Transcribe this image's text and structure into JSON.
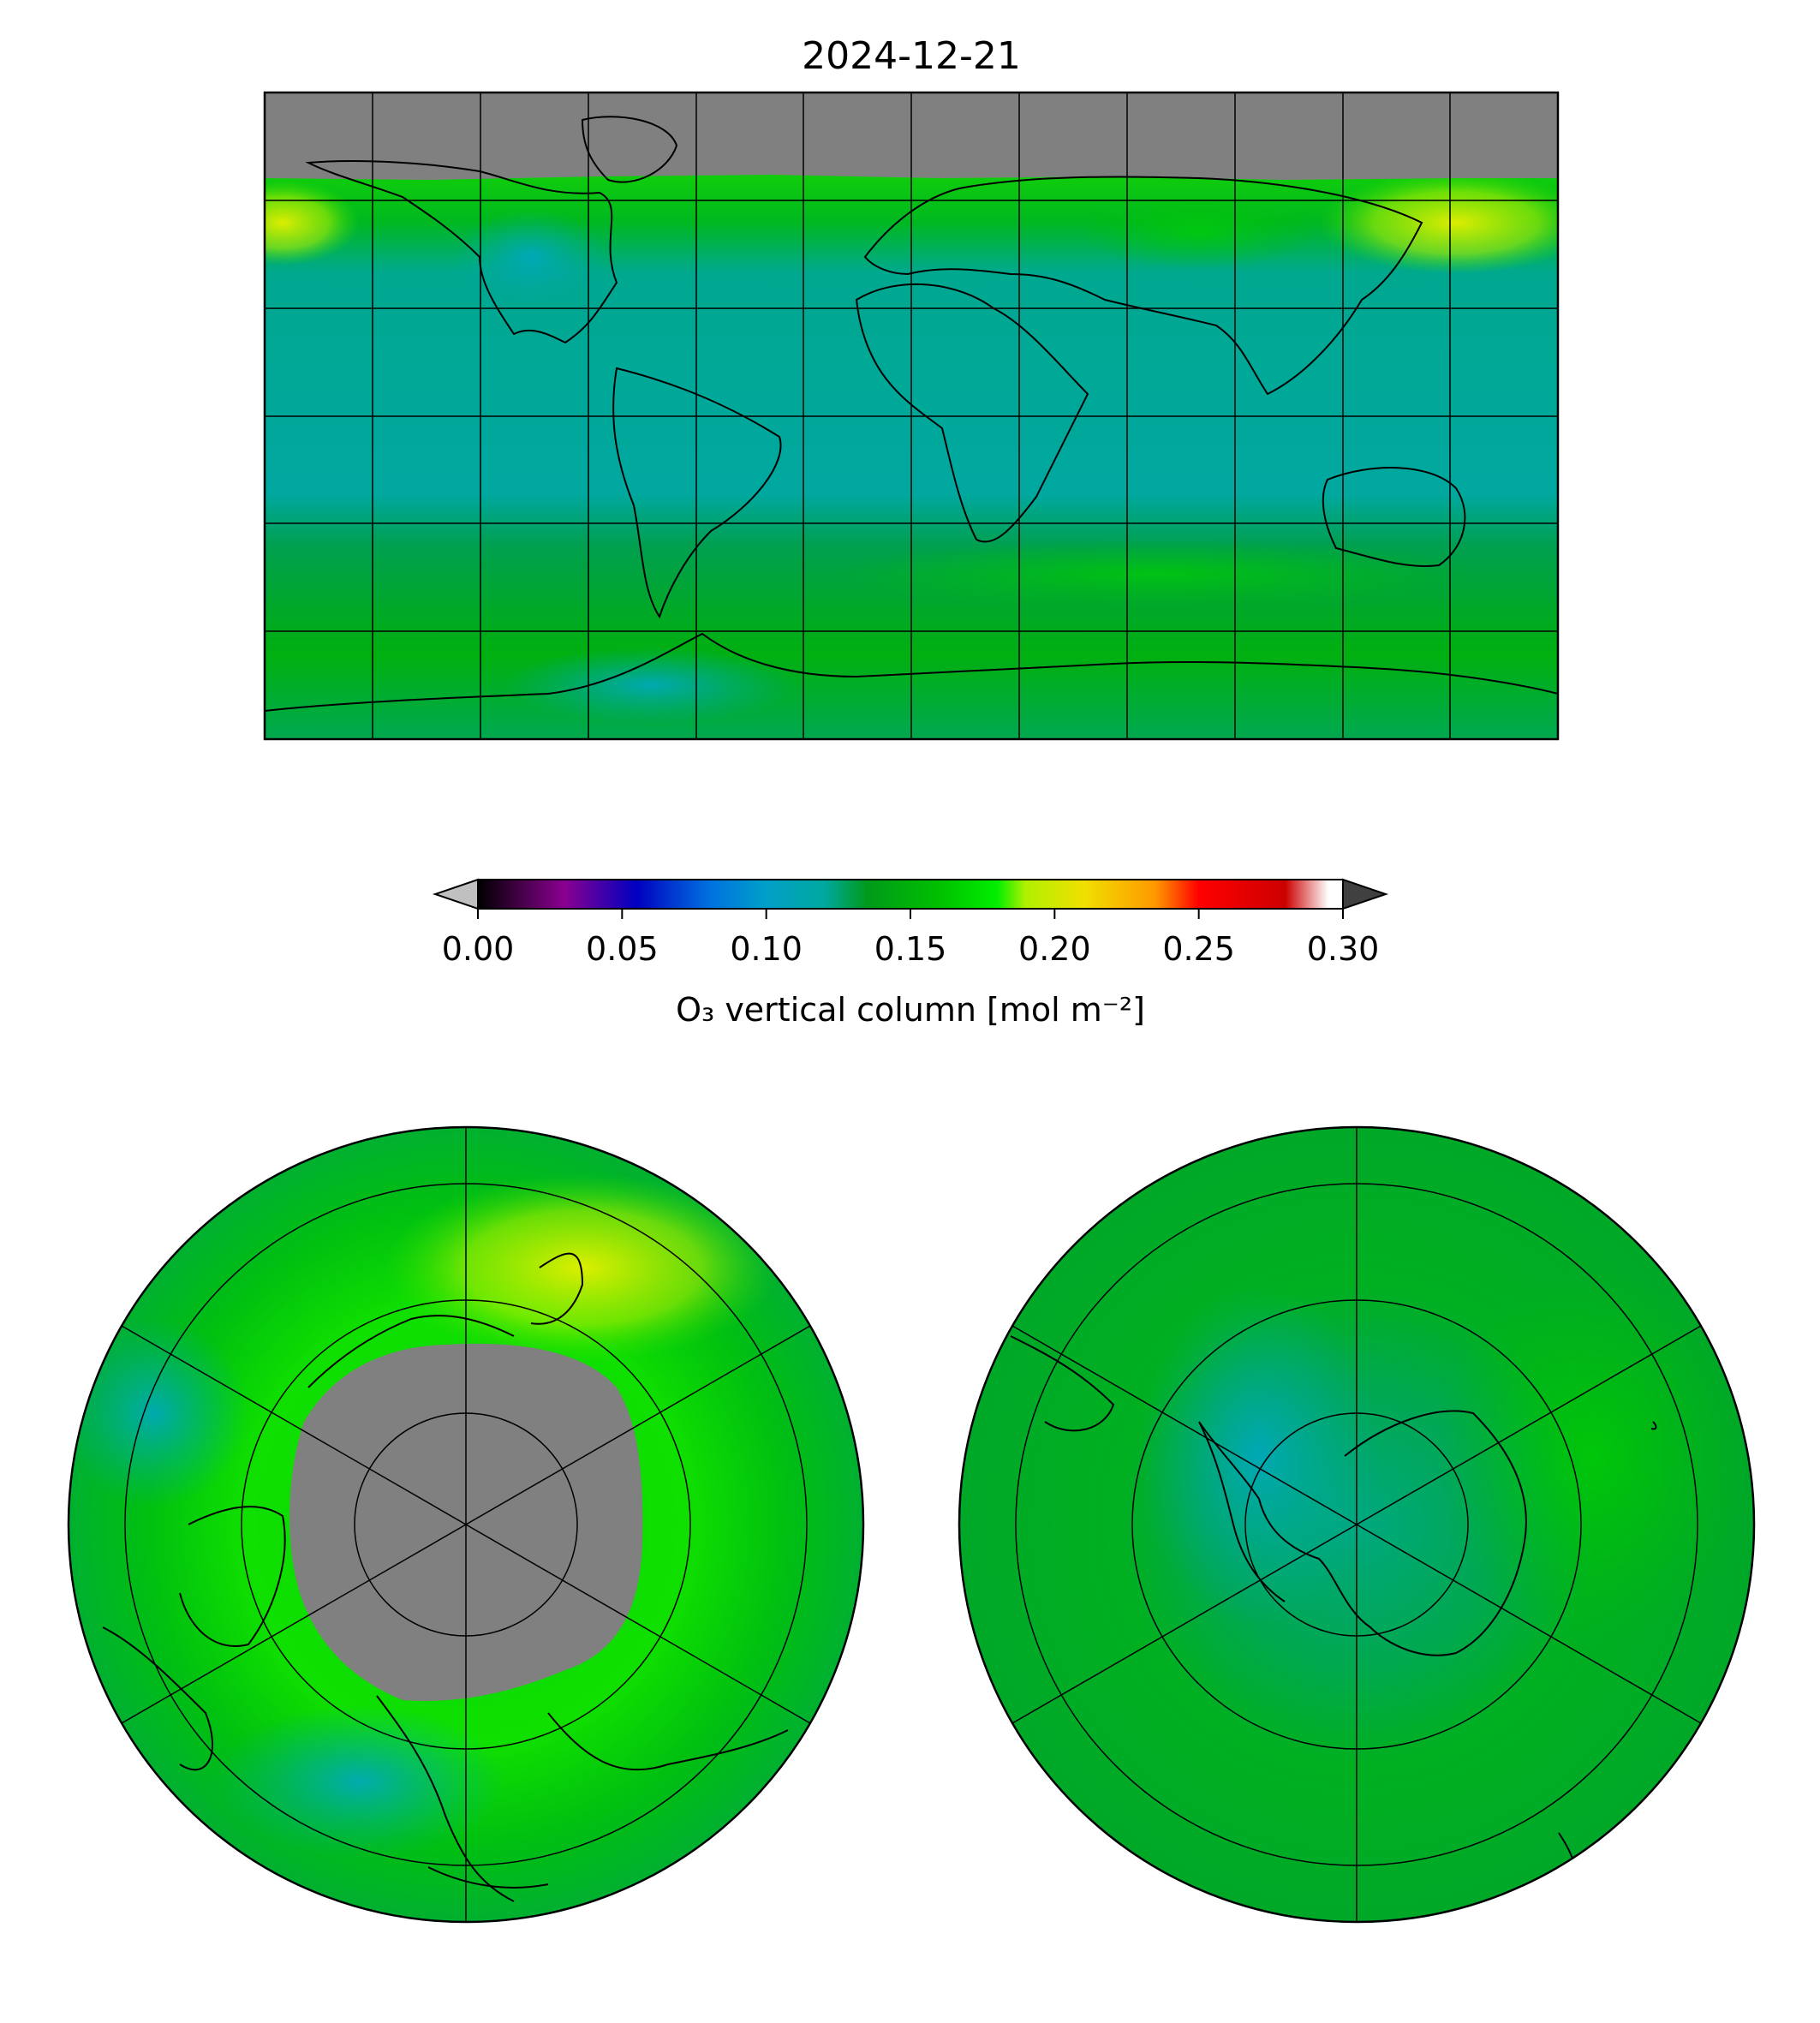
{
  "figure": {
    "title": "2024-12-21"
  },
  "colorbar": {
    "label": "O₃ vertical column [mol m⁻²]",
    "range": [
      0.0,
      0.3
    ],
    "extend": "both",
    "under_color": "#c0c0c0",
    "over_color": "#404040",
    "ticks": [
      "0.00",
      "0.05",
      "0.10",
      "0.15",
      "0.20",
      "0.25",
      "0.30"
    ],
    "tick_values": [
      0.0,
      0.05,
      0.1,
      0.15,
      0.2,
      0.25,
      0.3
    ],
    "colormap_stops": [
      {
        "value": 0.0,
        "color": "#000000"
      },
      {
        "value": 0.03,
        "color": "#8a0090"
      },
      {
        "value": 0.055,
        "color": "#0000c0"
      },
      {
        "value": 0.08,
        "color": "#0070e0"
      },
      {
        "value": 0.1,
        "color": "#00a0c8"
      },
      {
        "value": 0.12,
        "color": "#00a8a0"
      },
      {
        "value": 0.135,
        "color": "#009a1a"
      },
      {
        "value": 0.16,
        "color": "#00c000"
      },
      {
        "value": 0.18,
        "color": "#00ee00"
      },
      {
        "value": 0.19,
        "color": "#b0f000"
      },
      {
        "value": 0.21,
        "color": "#f0e000"
      },
      {
        "value": 0.235,
        "color": "#ff9800"
      },
      {
        "value": 0.25,
        "color": "#ff0000"
      },
      {
        "value": 0.28,
        "color": "#cc0000"
      },
      {
        "value": 0.295,
        "color": "#ffffff"
      }
    ]
  },
  "maps": {
    "global": {
      "projection": "plate-carree",
      "gridline_lon_step_deg": 30,
      "gridline_lat_step_deg": 30,
      "no_data_color": "#808080",
      "no_data_above_lat": 60
    },
    "north_polar": {
      "projection": "north-polar-stereographic",
      "gridline_lat_deg": [
        80,
        60,
        40,
        20
      ],
      "gridline_lon_step_deg": 60,
      "no_data_color": "#808080",
      "no_data_above_lat": 60
    },
    "south_polar": {
      "projection": "south-polar-stereographic",
      "gridline_lat_deg": [
        -80,
        -60,
        -40,
        -20
      ],
      "gridline_lon_step_deg": 60
    }
  }
}
